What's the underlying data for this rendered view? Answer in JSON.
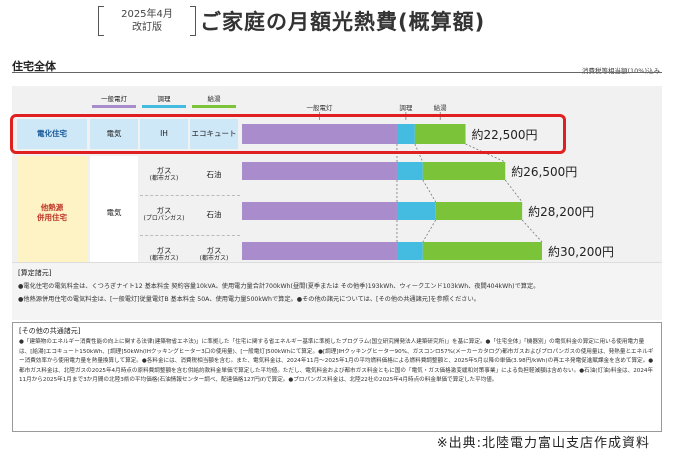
{
  "header": {
    "edition_line1": "2025年4月",
    "edition_line2": "改訂版",
    "title": "ご家庭の月額光熱費(概算額)"
  },
  "section": {
    "title": "住宅全体",
    "tax_note": "消費税等相当額(10%)込み"
  },
  "column_headers": {
    "lighting": "一般電灯",
    "cooking": "調理",
    "hot_water": "給湯"
  },
  "rows": {
    "electric": {
      "category": "電化住宅",
      "lighting": "電気",
      "cooking": "IH",
      "hot_water": "エコキュート"
    },
    "combined": {
      "category_line1": "他熱源",
      "category_line2": "併用住宅",
      "lighting": "電気",
      "sub": [
        {
          "cooking_l1": "ガス",
          "cooking_l2": "(都市ガス)",
          "hot_water_l1": "石油",
          "hot_water_l2": ""
        },
        {
          "cooking_l1": "ガス",
          "cooking_l2": "(プロパンガス)",
          "hot_water_l1": "石油",
          "hot_water_l2": ""
        },
        {
          "cooking_l1": "ガス",
          "cooking_l2": "(都市ガス)",
          "hot_water_l1": "ガス",
          "hot_water_l2": "(都市ガス)"
        }
      ]
    }
  },
  "chart_data": {
    "type": "bar",
    "stacked": true,
    "orientation": "horizontal",
    "series_names": [
      "一般電灯",
      "調理",
      "給湯"
    ],
    "series_colors": [
      "#a98ccc",
      "#44bbe0",
      "#7bc43a"
    ],
    "categories": [
      "電化住宅",
      "ガス(都市ガス)・石油",
      "ガス(プロパンガス)・石油",
      "ガス(都市ガス)・ガス(都市ガス)"
    ],
    "totals_yen": [
      22500,
      26500,
      28200,
      30200
    ],
    "total_labels": [
      "約22,500円",
      "約26,500円",
      "約28,200円",
      "約30,200円"
    ],
    "segments_yen": [
      [
        15600,
        1800,
        5100
      ],
      [
        15600,
        2600,
        8300
      ],
      [
        15600,
        3900,
        8700
      ],
      [
        15600,
        2600,
        12000
      ]
    ],
    "xlim": [
      0,
      30200
    ]
  },
  "conditions": {
    "title": "[算定諸元]",
    "line1": "●電化住宅の電気料金は、くつろぎナイト12 基本料金 契約容量10kVA、使用電力量合計700kWh(昼間(夏季または その他季)193kWh、ウィークエンド103kWh、夜間404kWh)で算定。",
    "line2": "●他熱源併用住宅の電気料金は、[一般電灯]従量電灯B 基本料金 50A、使用電力量500kWhで算定。●その他の諸元については、[その他の共通諸元]を参照ください。"
  },
  "common": {
    "title": "[その他の共通諸元]",
    "body": "●「建築物のエネルギー消費性能の向上に関する法律(建築物省エネ法)」に準拠した「住宅に関する省エネルギー基準に準拠したプログラム(国立研究開発法人建築研究所)」を基に算定。●「住宅全体」「機器別」の電気料金の算定に用いる使用電力量は、[給湯]エコキュート150kWh、[調理]50kWh(IHクッキングヒーター3口の使用量)、[一般電灯]500kWhにて算定。●[調理]IHクッキングヒーター90%、ガスコンロ57%(メーカーカタログ)都市ガスおよびプロパンガスの使用量は、発熱量とエネルギー消費効率から使用電力量を熱量換算して算定。●各料金には、消費税相当額を含む。また、電気料金は、2024年11月〜2025年1月の平均燃料価格による燃料費調整額と、2025年5月以降の単価(3.98円/kWh)の再エネ発電促進賦課金を含めて算定。●都市ガス料金は、北陸ガスの2025年4月時点の原料費調整額を含む供給約款料金単価で算定した平均値。ただし、電気料金および都市ガス料金ともに国の「電気・ガス価格激変緩和対策事業」による負担軽減額は含めない。●石油(灯油)料金は、2024年11月から2025年1月まで3か月間の北陸3県の平均価格(石油情報センター調べ、配達価格127円/ℓ)で算定。●プロパンガス料金は、北陸22社の2025年4月時点の料金単価で算定した平均値。"
  },
  "source": "※出典:北陸電力富山支店作成資料"
}
